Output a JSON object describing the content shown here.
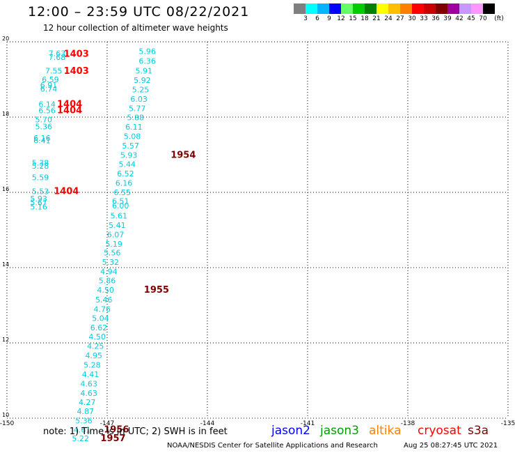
{
  "header": {
    "title": "12:00 – 23:59 UTC 08/22/2021",
    "subtitle": "12 hour collection of altimeter wave heights"
  },
  "scale": {
    "labels": [
      "3",
      "6",
      "9",
      "12",
      "15",
      "18",
      "21",
      "24",
      "27",
      "30",
      "33",
      "36",
      "39",
      "42",
      "45",
      "70"
    ],
    "unit": "(ft)",
    "colors": [
      "#7f7f7f",
      "#00ffff",
      "#00b4ff",
      "#0000ff",
      "#64ff64",
      "#00cc00",
      "#007f00",
      "#ffff00",
      "#ffbe00",
      "#ff8000",
      "#ff0000",
      "#c80000",
      "#800000",
      "#a000a0",
      "#c896ff",
      "#ff96ff",
      "#000000"
    ]
  },
  "chart_data": {
    "type": "scatter",
    "xlim": [
      -150,
      -135
    ],
    "ylim": [
      10,
      20
    ],
    "x_ticks": [
      "-150",
      "-147",
      "-144",
      "-141",
      "-138",
      "-135"
    ],
    "y_ticks": [
      "20",
      "18",
      "16",
      "14",
      "12",
      "10"
    ],
    "grid": true,
    "track_a": [
      {
        "lon": -148.5,
        "lat": 19.62,
        "swh": "7.63"
      },
      {
        "lon": -148.5,
        "lat": 19.52,
        "swh": "7.68"
      },
      {
        "lon": -148.6,
        "lat": 19.16,
        "swh": "7.55"
      },
      {
        "lon": -148.7,
        "lat": 18.93,
        "swh": "6.59"
      },
      {
        "lon": -148.75,
        "lat": 18.78,
        "swh": "6.91"
      },
      {
        "lon": -148.75,
        "lat": 18.68,
        "swh": "6.74"
      },
      {
        "lon": -148.8,
        "lat": 18.27,
        "swh": "6.14"
      },
      {
        "lon": -148.8,
        "lat": 18.1,
        "swh": "6.56"
      },
      {
        "lon": -148.9,
        "lat": 17.86,
        "swh": "5.70"
      },
      {
        "lon": -148.9,
        "lat": 17.68,
        "swh": "5.36"
      },
      {
        "lon": -148.95,
        "lat": 17.37,
        "swh": "6.16"
      },
      {
        "lon": -148.95,
        "lat": 17.31,
        "swh": "6.41"
      },
      {
        "lon": -149.0,
        "lat": 16.71,
        "swh": "5.38"
      },
      {
        "lon": -149.0,
        "lat": 16.63,
        "swh": "5.28"
      },
      {
        "lon": -149.0,
        "lat": 16.32,
        "swh": "5.59"
      },
      {
        "lon": -149.0,
        "lat": 15.95,
        "swh": "5.53"
      },
      {
        "lon": -149.05,
        "lat": 15.76,
        "swh": "5.93"
      },
      {
        "lon": -149.05,
        "lat": 15.66,
        "swh": "5.67"
      },
      {
        "lon": -149.05,
        "lat": 15.55,
        "swh": "5.16"
      }
    ],
    "track_b": [
      {
        "lon": -145.8,
        "lat": 19.68,
        "swh": "5.96"
      },
      {
        "lon": -145.8,
        "lat": 19.42,
        "swh": "6.36"
      },
      {
        "lon": -145.9,
        "lat": 19.16,
        "swh": "5.91"
      },
      {
        "lon": -145.95,
        "lat": 18.91,
        "swh": "5.92"
      },
      {
        "lon": -146.0,
        "lat": 18.66,
        "swh": "5.25"
      },
      {
        "lon": -146.05,
        "lat": 18.41,
        "swh": "6.03"
      },
      {
        "lon": -146.1,
        "lat": 18.16,
        "swh": "5.77"
      },
      {
        "lon": -146.15,
        "lat": 17.92,
        "swh": "5.88"
      },
      {
        "lon": -146.2,
        "lat": 17.67,
        "swh": "6.11"
      },
      {
        "lon": -146.25,
        "lat": 17.42,
        "swh": "5.08"
      },
      {
        "lon": -146.3,
        "lat": 17.17,
        "swh": "5.57"
      },
      {
        "lon": -146.35,
        "lat": 16.92,
        "swh": "5.93"
      },
      {
        "lon": -146.4,
        "lat": 16.68,
        "swh": "5.44"
      },
      {
        "lon": -146.45,
        "lat": 16.43,
        "swh": "6.52"
      },
      {
        "lon": -146.5,
        "lat": 16.18,
        "swh": "6.16"
      },
      {
        "lon": -146.55,
        "lat": 15.93,
        "swh": "6.55"
      },
      {
        "lon": -146.6,
        "lat": 15.69,
        "swh": "6.51"
      },
      {
        "lon": -146.6,
        "lat": 15.57,
        "swh": "6.00"
      },
      {
        "lon": -146.65,
        "lat": 15.31,
        "swh": "5.61"
      },
      {
        "lon": -146.7,
        "lat": 15.06,
        "swh": "5.41"
      },
      {
        "lon": -146.75,
        "lat": 14.81,
        "swh": "6.07"
      },
      {
        "lon": -146.8,
        "lat": 14.56,
        "swh": "5.19"
      },
      {
        "lon": -146.85,
        "lat": 14.32,
        "swh": "5.56"
      },
      {
        "lon": -146.9,
        "lat": 14.07,
        "swh": "5.32"
      },
      {
        "lon": -146.95,
        "lat": 13.82,
        "swh": "4.94"
      },
      {
        "lon": -147.0,
        "lat": 13.58,
        "swh": "5.86"
      },
      {
        "lon": -147.05,
        "lat": 13.33,
        "swh": "4.50"
      },
      {
        "lon": -147.1,
        "lat": 13.07,
        "swh": "5.46"
      },
      {
        "lon": -147.15,
        "lat": 12.82,
        "swh": "4.76"
      },
      {
        "lon": -147.2,
        "lat": 12.58,
        "swh": "5.04"
      },
      {
        "lon": -147.25,
        "lat": 12.33,
        "swh": "6.62"
      },
      {
        "lon": -147.3,
        "lat": 12.09,
        "swh": "4.50"
      },
      {
        "lon": -147.35,
        "lat": 11.84,
        "swh": "4.25"
      },
      {
        "lon": -147.4,
        "lat": 11.59,
        "swh": "4.95"
      },
      {
        "lon": -147.45,
        "lat": 11.34,
        "swh": "5.28"
      },
      {
        "lon": -147.5,
        "lat": 11.09,
        "swh": "4.41"
      },
      {
        "lon": -147.55,
        "lat": 10.84,
        "swh": "4.63"
      },
      {
        "lon": -147.55,
        "lat": 10.59,
        "swh": "4.63"
      },
      {
        "lon": -147.6,
        "lat": 10.35,
        "swh": "4.27"
      },
      {
        "lon": -147.65,
        "lat": 10.11,
        "swh": "4.87"
      },
      {
        "lon": -147.7,
        "lat": 9.86,
        "swh": "5.36"
      },
      {
        "lon": -147.75,
        "lat": 9.62,
        "swh": "4.61"
      },
      {
        "lon": -147.8,
        "lat": 9.39,
        "swh": "5.22"
      }
    ],
    "time_labels": [
      {
        "lon": -148.3,
        "lat": 19.6,
        "text": "1403",
        "color": "#ff0000"
      },
      {
        "lon": -148.3,
        "lat": 19.15,
        "text": "1403",
        "color": "#ff0000"
      },
      {
        "lon": -148.5,
        "lat": 18.27,
        "text": "1404",
        "color": "#ff0000"
      },
      {
        "lon": -148.5,
        "lat": 18.1,
        "text": "1404",
        "color": "#ff0000"
      },
      {
        "lon": -148.6,
        "lat": 15.95,
        "text": "1404",
        "color": "#ff0000"
      },
      {
        "lon": -145.1,
        "lat": 16.92,
        "text": "1954",
        "color": "#800000"
      },
      {
        "lon": -145.9,
        "lat": 13.33,
        "text": "1955",
        "color": "#800000"
      },
      {
        "lon": -147.1,
        "lat": 9.62,
        "text": "1956",
        "color": "#800000"
      },
      {
        "lon": -147.2,
        "lat": 9.39,
        "text": "1957",
        "color": "#800000"
      }
    ]
  },
  "footer": {
    "note": "note:  1) Time is in UTC;  2) SWH is in feet",
    "satellites": [
      {
        "name": "jason2",
        "color": "#0000ff"
      },
      {
        "name": "jason3",
        "color": "#00a000"
      },
      {
        "name": "altika",
        "color": "#ff8000"
      },
      {
        "name": "cryosat",
        "color": "#ff0000"
      },
      {
        "name": "s3a",
        "color": "#800000"
      }
    ],
    "credit": "NOAA/NESDIS Center for Satellite Applications and Research",
    "timestamp": "Aug 25 08:27:45 UTC 2021"
  }
}
